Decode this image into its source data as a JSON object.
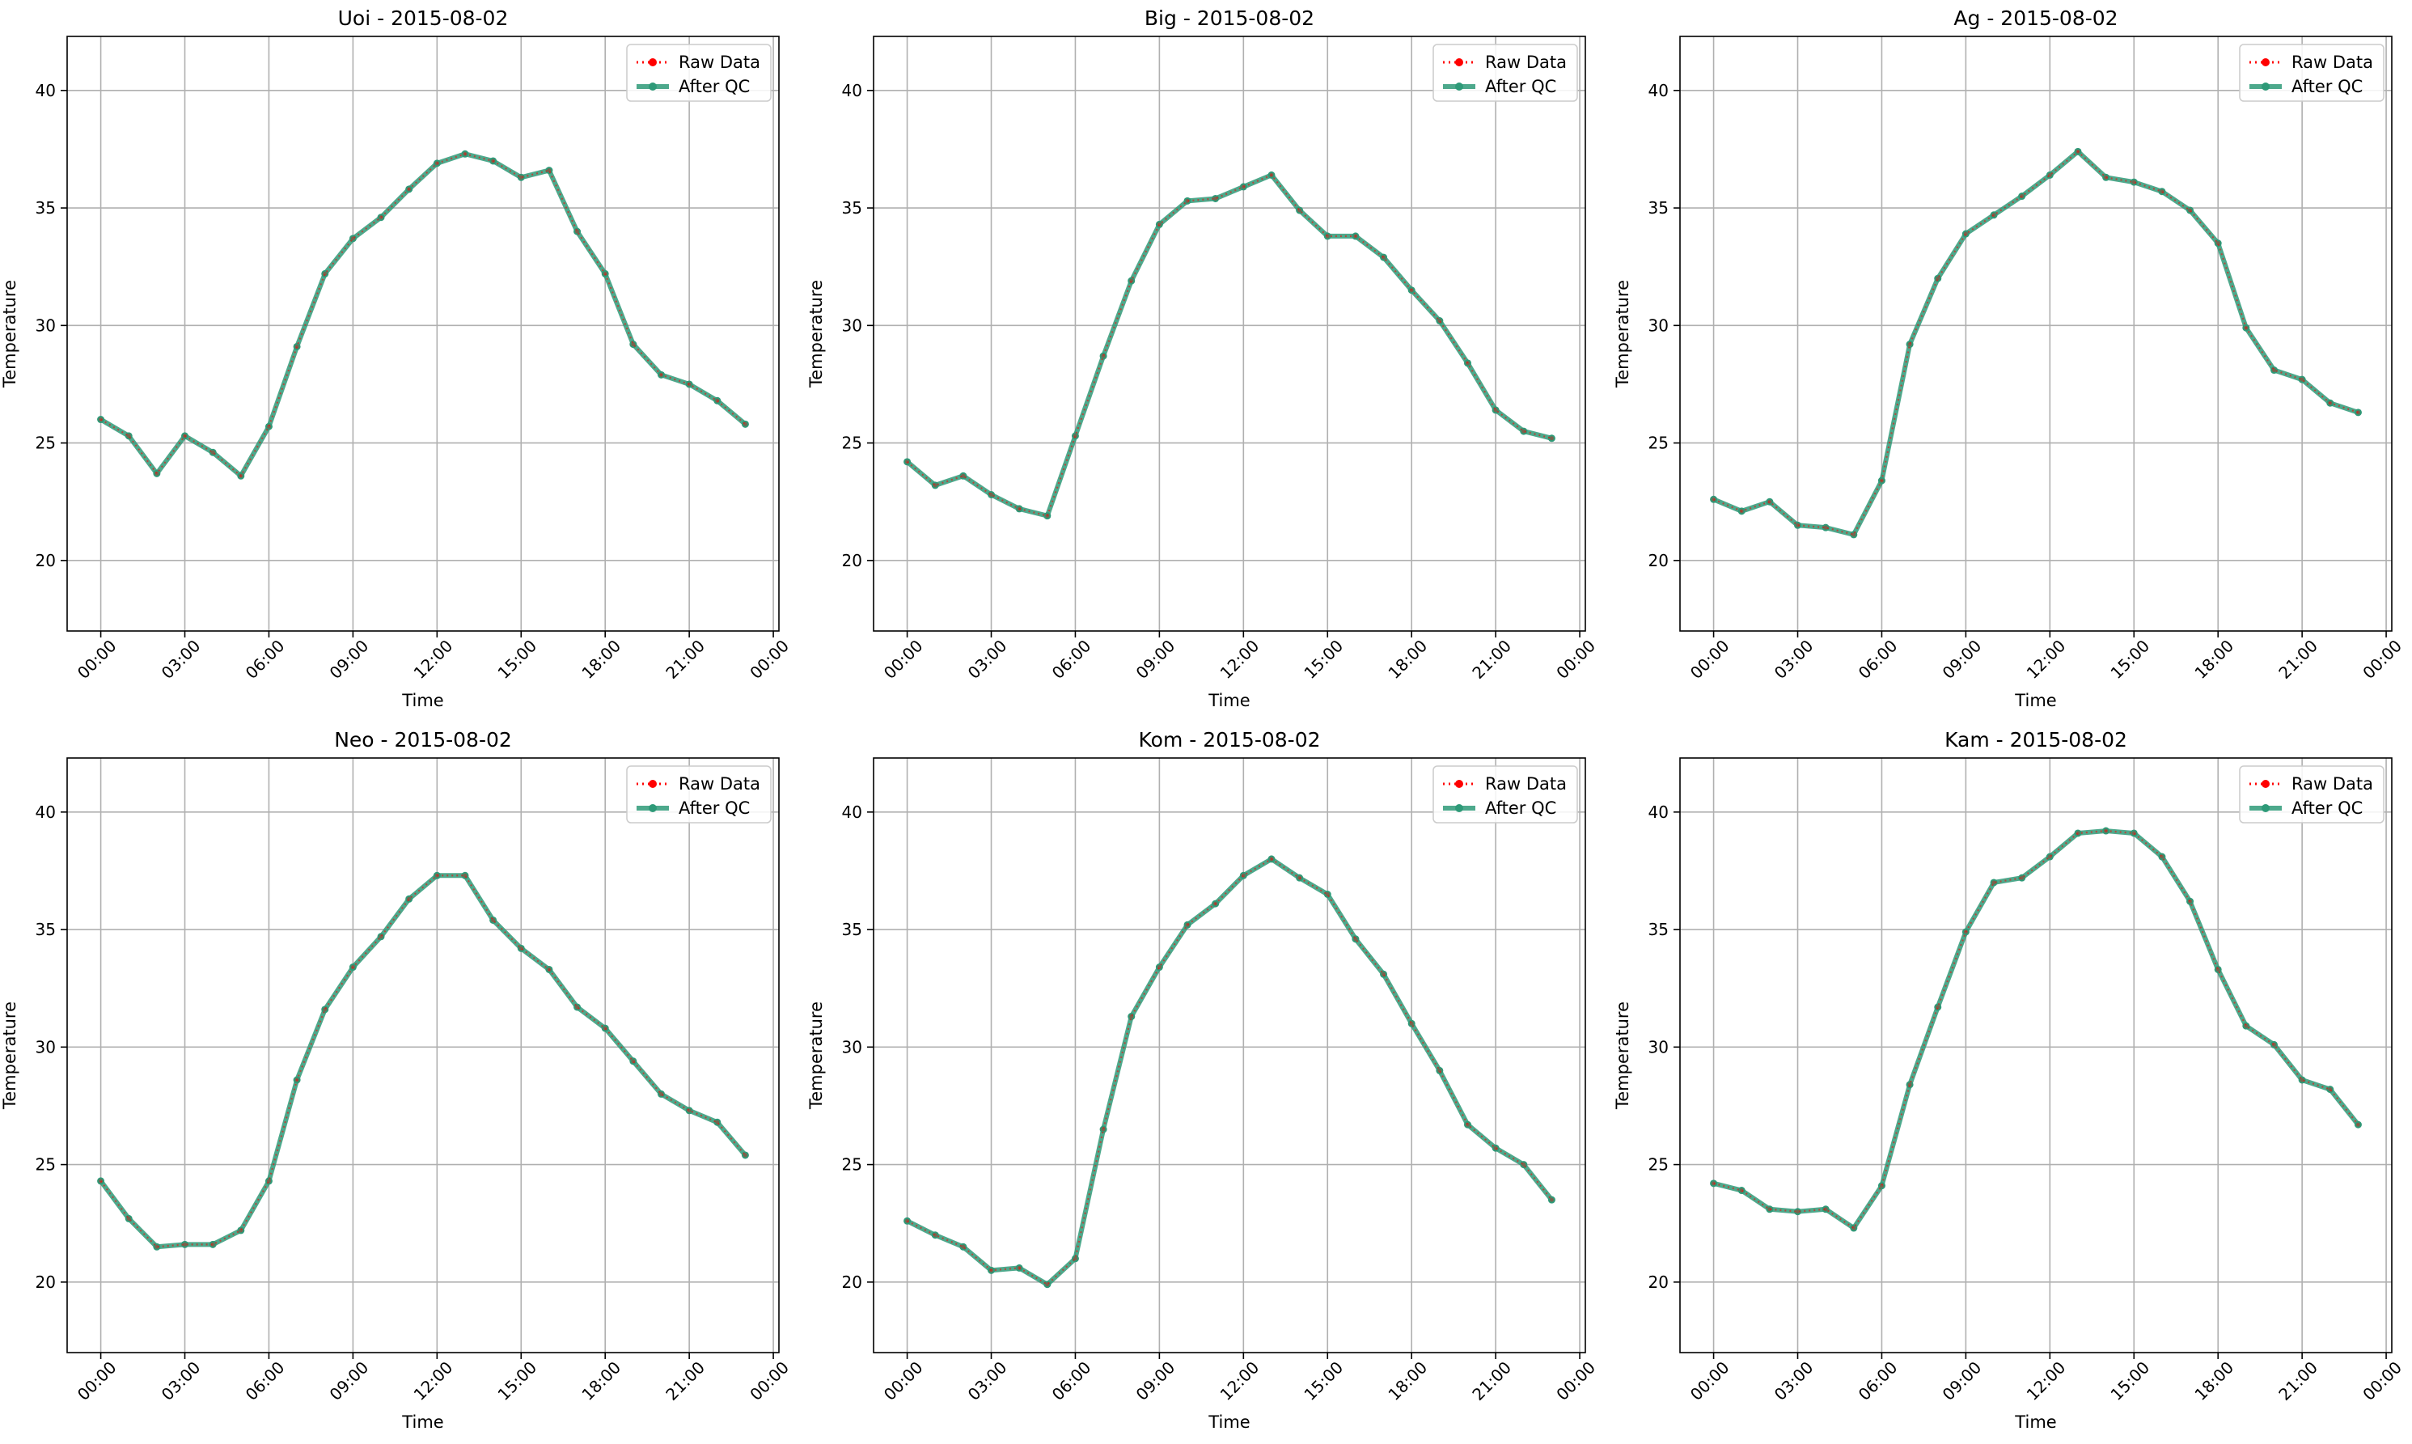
{
  "colors": {
    "raw": "#ff0000",
    "after_qc": "#2e9a78",
    "grid": "#b0b0b0",
    "axes": "#000000",
    "legend_border": "#cccccc"
  },
  "chart_data": [
    {
      "type": "line",
      "title": "Uoi - 2015-08-02",
      "xlabel": "Time",
      "ylabel": "Temperature",
      "x_ticks": [
        "00:00",
        "03:00",
        "06:00",
        "09:00",
        "12:00",
        "15:00",
        "18:00",
        "21:00",
        "00:00"
      ],
      "y_ticks": [
        "20",
        "25",
        "30",
        "35",
        "40"
      ],
      "xlim": [
        -1.2,
        24.2
      ],
      "ylim": [
        17,
        42.3
      ],
      "grid": true,
      "legend": "top-right",
      "x": [
        0,
        1,
        2,
        3,
        4,
        5,
        6,
        7,
        8,
        9,
        10,
        11,
        12,
        13,
        14,
        15,
        16,
        17,
        18,
        19,
        20,
        21,
        22,
        23
      ],
      "series": [
        {
          "name": "Raw Data",
          "style": "dotted",
          "values": [
            26.0,
            25.3,
            23.7,
            25.3,
            24.6,
            23.6,
            25.7,
            29.1,
            32.2,
            33.7,
            34.6,
            35.8,
            36.9,
            37.3,
            37.0,
            36.3,
            36.6,
            34.0,
            32.2,
            29.2,
            27.9,
            27.5,
            26.8,
            25.8
          ]
        },
        {
          "name": "After QC",
          "style": "solid",
          "values": [
            26.0,
            25.3,
            23.7,
            25.3,
            24.6,
            23.6,
            25.7,
            29.1,
            32.2,
            33.7,
            34.6,
            35.8,
            36.9,
            37.3,
            37.0,
            36.3,
            36.6,
            34.0,
            32.2,
            29.2,
            27.9,
            27.5,
            26.8,
            25.8
          ]
        }
      ]
    },
    {
      "type": "line",
      "title": "Big - 2015-08-02",
      "xlabel": "Time",
      "ylabel": "Temperature",
      "x_ticks": [
        "00:00",
        "03:00",
        "06:00",
        "09:00",
        "12:00",
        "15:00",
        "18:00",
        "21:00",
        "00:00"
      ],
      "y_ticks": [
        "20",
        "25",
        "30",
        "35",
        "40"
      ],
      "xlim": [
        -1.2,
        24.2
      ],
      "ylim": [
        17,
        42.3
      ],
      "grid": true,
      "legend": "top-right",
      "x": [
        0,
        1,
        2,
        3,
        4,
        5,
        6,
        7,
        8,
        9,
        10,
        11,
        12,
        13,
        14,
        15,
        16,
        17,
        18,
        19,
        20,
        21,
        22,
        23
      ],
      "series": [
        {
          "name": "Raw Data",
          "style": "dotted",
          "values": [
            24.2,
            23.2,
            23.6,
            22.8,
            22.2,
            21.9,
            25.3,
            28.7,
            31.9,
            34.3,
            35.3,
            35.4,
            35.9,
            36.4,
            34.9,
            33.8,
            33.8,
            32.9,
            31.5,
            30.2,
            28.4,
            26.4,
            25.5,
            25.2
          ]
        },
        {
          "name": "After QC",
          "style": "solid",
          "values": [
            24.2,
            23.2,
            23.6,
            22.8,
            22.2,
            21.9,
            25.3,
            28.7,
            31.9,
            34.3,
            35.3,
            35.4,
            35.9,
            36.4,
            34.9,
            33.8,
            33.8,
            32.9,
            31.5,
            30.2,
            28.4,
            26.4,
            25.5,
            25.2
          ]
        }
      ]
    },
    {
      "type": "line",
      "title": "Ag - 2015-08-02",
      "xlabel": "Time",
      "ylabel": "Temperature",
      "x_ticks": [
        "00:00",
        "03:00",
        "06:00",
        "09:00",
        "12:00",
        "15:00",
        "18:00",
        "21:00",
        "00:00"
      ],
      "y_ticks": [
        "20",
        "25",
        "30",
        "35",
        "40"
      ],
      "xlim": [
        -1.2,
        24.2
      ],
      "ylim": [
        17,
        42.3
      ],
      "grid": true,
      "legend": "top-right",
      "x": [
        0,
        1,
        2,
        3,
        4,
        5,
        6,
        7,
        8,
        9,
        10,
        11,
        12,
        13,
        14,
        15,
        16,
        17,
        18,
        19,
        20,
        21,
        22,
        23
      ],
      "series": [
        {
          "name": "Raw Data",
          "style": "dotted",
          "values": [
            22.6,
            22.1,
            22.5,
            21.5,
            21.4,
            21.1,
            23.4,
            29.2,
            32.0,
            33.9,
            34.7,
            35.5,
            36.4,
            37.4,
            36.3,
            36.1,
            35.7,
            34.9,
            33.5,
            29.9,
            28.1,
            27.7,
            26.7,
            26.3
          ]
        },
        {
          "name": "After QC",
          "style": "solid",
          "values": [
            22.6,
            22.1,
            22.5,
            21.5,
            21.4,
            21.1,
            23.4,
            29.2,
            32.0,
            33.9,
            34.7,
            35.5,
            36.4,
            37.4,
            36.3,
            36.1,
            35.7,
            34.9,
            33.5,
            29.9,
            28.1,
            27.7,
            26.7,
            26.3
          ]
        }
      ]
    },
    {
      "type": "line",
      "title": "Neo - 2015-08-02",
      "xlabel": "Time",
      "ylabel": "Temperature",
      "x_ticks": [
        "00:00",
        "03:00",
        "06:00",
        "09:00",
        "12:00",
        "15:00",
        "18:00",
        "21:00",
        "00:00"
      ],
      "y_ticks": [
        "20",
        "25",
        "30",
        "35",
        "40"
      ],
      "xlim": [
        -1.2,
        24.2
      ],
      "ylim": [
        17,
        42.3
      ],
      "grid": true,
      "legend": "top-right",
      "x": [
        0,
        1,
        2,
        3,
        4,
        5,
        6,
        7,
        8,
        9,
        10,
        11,
        12,
        13,
        14,
        15,
        16,
        17,
        18,
        19,
        20,
        21,
        22,
        23
      ],
      "series": [
        {
          "name": "Raw Data",
          "style": "dotted",
          "values": [
            24.3,
            22.7,
            21.5,
            21.6,
            21.6,
            22.2,
            24.3,
            28.6,
            31.6,
            33.4,
            34.7,
            36.3,
            37.3,
            37.3,
            35.4,
            34.2,
            33.3,
            31.7,
            30.8,
            29.4,
            28.0,
            27.3,
            26.8,
            25.4
          ]
        },
        {
          "name": "After QC",
          "style": "solid",
          "values": [
            24.3,
            22.7,
            21.5,
            21.6,
            21.6,
            22.2,
            24.3,
            28.6,
            31.6,
            33.4,
            34.7,
            36.3,
            37.3,
            37.3,
            35.4,
            34.2,
            33.3,
            31.7,
            30.8,
            29.4,
            28.0,
            27.3,
            26.8,
            25.4
          ]
        }
      ]
    },
    {
      "type": "line",
      "title": "Kom - 2015-08-02",
      "xlabel": "Time",
      "ylabel": "Temperature",
      "x_ticks": [
        "00:00",
        "03:00",
        "06:00",
        "09:00",
        "12:00",
        "15:00",
        "18:00",
        "21:00",
        "00:00"
      ],
      "y_ticks": [
        "20",
        "25",
        "30",
        "35",
        "40"
      ],
      "xlim": [
        -1.2,
        24.2
      ],
      "ylim": [
        17,
        42.3
      ],
      "grid": true,
      "legend": "top-right",
      "x": [
        0,
        1,
        2,
        3,
        4,
        5,
        6,
        7,
        8,
        9,
        10,
        11,
        12,
        13,
        14,
        15,
        16,
        17,
        18,
        19,
        20,
        21,
        22,
        23
      ],
      "series": [
        {
          "name": "Raw Data",
          "style": "dotted",
          "values": [
            22.6,
            22.0,
            21.5,
            20.5,
            20.6,
            19.9,
            21.0,
            26.5,
            31.3,
            33.4,
            35.2,
            36.1,
            37.3,
            38.0,
            37.2,
            36.5,
            34.6,
            33.1,
            31.0,
            29.0,
            26.7,
            25.7,
            25.0,
            23.5
          ]
        },
        {
          "name": "After QC",
          "style": "solid",
          "values": [
            22.6,
            22.0,
            21.5,
            20.5,
            20.6,
            19.9,
            21.0,
            26.5,
            31.3,
            33.4,
            35.2,
            36.1,
            37.3,
            38.0,
            37.2,
            36.5,
            34.6,
            33.1,
            31.0,
            29.0,
            26.7,
            25.7,
            25.0,
            23.5
          ]
        }
      ]
    },
    {
      "type": "line",
      "title": "Kam - 2015-08-02",
      "xlabel": "Time",
      "ylabel": "Temperature",
      "x_ticks": [
        "00:00",
        "03:00",
        "06:00",
        "09:00",
        "12:00",
        "15:00",
        "18:00",
        "21:00",
        "00:00"
      ],
      "y_ticks": [
        "20",
        "25",
        "30",
        "35",
        "40"
      ],
      "xlim": [
        -1.2,
        24.2
      ],
      "ylim": [
        17,
        42.3
      ],
      "grid": true,
      "legend": "top-right",
      "x": [
        0,
        1,
        2,
        3,
        4,
        5,
        6,
        7,
        8,
        9,
        10,
        11,
        12,
        13,
        14,
        15,
        16,
        17,
        18,
        19,
        20,
        21,
        22,
        23
      ],
      "series": [
        {
          "name": "Raw Data",
          "style": "dotted",
          "values": [
            24.2,
            23.9,
            23.1,
            23.0,
            23.1,
            22.3,
            24.1,
            28.4,
            31.7,
            34.9,
            37.0,
            37.2,
            38.1,
            39.1,
            39.2,
            39.1,
            38.1,
            36.2,
            33.3,
            30.9,
            30.1,
            28.6,
            28.2,
            26.7
          ]
        },
        {
          "name": "After QC",
          "style": "solid",
          "values": [
            24.2,
            23.9,
            23.1,
            23.0,
            23.1,
            22.3,
            24.1,
            28.4,
            31.7,
            34.9,
            37.0,
            37.2,
            38.1,
            39.1,
            39.2,
            39.1,
            38.1,
            36.2,
            33.3,
            30.9,
            30.1,
            28.6,
            28.2,
            26.7
          ]
        }
      ]
    }
  ]
}
